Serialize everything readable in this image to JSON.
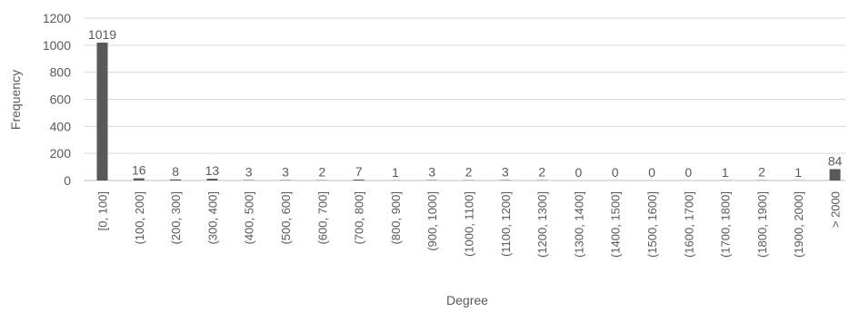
{
  "chart_data": {
    "type": "bar",
    "title": "",
    "xlabel": "Degree",
    "ylabel": "Frequency",
    "ylim": [
      0,
      1200
    ],
    "yticks": [
      0,
      200,
      400,
      600,
      800,
      1000,
      1200
    ],
    "grid": true,
    "legend": "none",
    "bar_color": "#595959",
    "categories": [
      "[0, 100]",
      "(100, 200]",
      "(200, 300]",
      "(300, 400]",
      "(400, 500]",
      "(500, 600]",
      "(600, 700]",
      "(700, 800]",
      "(800, 900]",
      "(900, 1000]",
      "(1000, 1100]",
      "(1100, 1200]",
      "(1200, 1300]",
      "(1300, 1400]",
      "(1400, 1500]",
      "(1500, 1600]",
      "(1600, 1700]",
      "(1700, 1800]",
      "(1800, 1900]",
      "(1900, 2000]",
      "> 2000"
    ],
    "values": [
      1019,
      16,
      8,
      13,
      3,
      3,
      2,
      7,
      1,
      3,
      2,
      3,
      2,
      0,
      0,
      0,
      0,
      1,
      2,
      1,
      84
    ]
  }
}
